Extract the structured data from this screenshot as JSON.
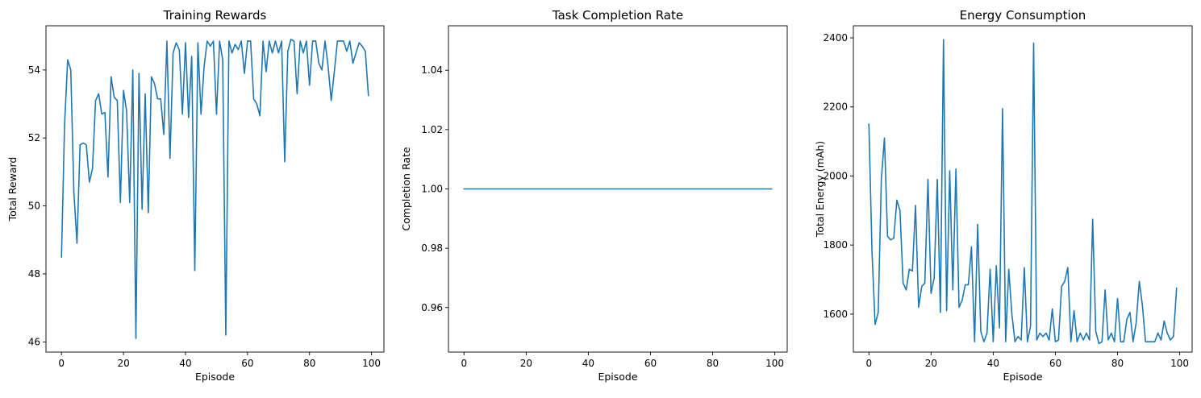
{
  "chart_data": [
    {
      "type": "line",
      "title": "Training Rewards",
      "xlabel": "Episode",
      "ylabel": "Total Reward",
      "xlim": [
        -5,
        104
      ],
      "ylim": [
        45.7,
        55.3
      ],
      "xticks": [
        0,
        20,
        40,
        60,
        80,
        100
      ],
      "yticks": [
        46,
        48,
        50,
        52,
        54
      ],
      "color": "#1f77b4",
      "grid": false,
      "series": [
        {
          "x": [
            0,
            1,
            2,
            3,
            4,
            5,
            6,
            7,
            8,
            9,
            10,
            11,
            12,
            13,
            14,
            15,
            16,
            17,
            18,
            19,
            20,
            21,
            22,
            23,
            24,
            25,
            26,
            27,
            28,
            29,
            30,
            31,
            32,
            33,
            34,
            35,
            36,
            37,
            38,
            39,
            40,
            41,
            42,
            43,
            44,
            45,
            46,
            47,
            48,
            49,
            50,
            51,
            52,
            53,
            54,
            55,
            56,
            57,
            58,
            59,
            60,
            61,
            62,
            63,
            64,
            65,
            66,
            67,
            68,
            69,
            70,
            71,
            72,
            73,
            74,
            75,
            76,
            77,
            78,
            79,
            80,
            81,
            82,
            83,
            84,
            85,
            86,
            87,
            88,
            89,
            90,
            91,
            92,
            93,
            94,
            95,
            96,
            97,
            98,
            99
          ],
          "values": [
            48.5,
            52.4,
            54.3,
            54.0,
            50.4,
            48.9,
            51.8,
            51.85,
            51.8,
            50.7,
            51.1,
            53.1,
            53.3,
            52.7,
            52.75,
            50.85,
            53.8,
            53.2,
            53.1,
            50.1,
            53.4,
            52.8,
            50.1,
            54.0,
            46.1,
            53.9,
            49.9,
            53.3,
            49.8,
            53.8,
            53.6,
            53.15,
            53.15,
            52.1,
            54.85,
            51.4,
            54.5,
            54.8,
            54.6,
            52.7,
            54.8,
            52.6,
            54.4,
            48.1,
            54.8,
            52.7,
            54.1,
            54.85,
            54.7,
            54.85,
            52.7,
            54.85,
            54.3,
            46.2,
            54.85,
            54.5,
            54.75,
            54.6,
            54.85,
            53.9,
            54.85,
            54.85,
            53.15,
            53.0,
            52.65,
            54.85,
            53.95,
            54.85,
            54.5,
            54.85,
            54.5,
            54.85,
            51.3,
            54.55,
            54.9,
            54.85,
            53.3,
            54.85,
            54.5,
            54.85,
            53.55,
            54.85,
            54.85,
            54.2,
            54.0,
            54.85,
            54.1,
            53.1,
            53.95,
            54.85,
            54.85,
            54.85,
            54.55,
            54.85,
            54.2,
            54.5,
            54.8,
            54.7,
            54.55,
            53.25
          ]
        }
      ]
    },
    {
      "type": "line",
      "title": "Task Completion Rate",
      "xlabel": "Episode",
      "ylabel": "Completion Rate",
      "xlim": [
        -5,
        104
      ],
      "ylim": [
        0.945,
        1.055
      ],
      "xticks": [
        0,
        20,
        40,
        60,
        80,
        100
      ],
      "yticks": [
        0.96,
        0.98,
        1.0,
        1.02,
        1.04
      ],
      "color": "#1f77b4",
      "grid": false,
      "series": [
        {
          "x": [
            0,
            99
          ],
          "values": [
            1.0,
            1.0
          ]
        }
      ]
    },
    {
      "type": "line",
      "title": "Energy Consumption",
      "xlabel": "Episode",
      "ylabel": "Total Energy (mAh)",
      "xlim": [
        -5,
        104
      ],
      "ylim": [
        1490,
        2435
      ],
      "xticks": [
        0,
        20,
        40,
        60,
        80,
        100
      ],
      "yticks": [
        1600,
        1800,
        2000,
        2200,
        2400
      ],
      "color": "#1f77b4",
      "grid": false,
      "series": [
        {
          "x": [
            0,
            1,
            2,
            3,
            4,
            5,
            6,
            7,
            8,
            9,
            10,
            11,
            12,
            13,
            14,
            15,
            16,
            17,
            18,
            19,
            20,
            21,
            22,
            23,
            24,
            25,
            26,
            27,
            28,
            29,
            30,
            31,
            32,
            33,
            34,
            35,
            36,
            37,
            38,
            39,
            40,
            41,
            42,
            43,
            44,
            45,
            46,
            47,
            48,
            49,
            50,
            51,
            52,
            53,
            54,
            55,
            56,
            57,
            58,
            59,
            60,
            61,
            62,
            63,
            64,
            65,
            66,
            67,
            68,
            69,
            70,
            71,
            72,
            73,
            74,
            75,
            76,
            77,
            78,
            79,
            80,
            81,
            82,
            83,
            84,
            85,
            86,
            87,
            88,
            89,
            90,
            91,
            92,
            93,
            94,
            95,
            96,
            97,
            98,
            99
          ],
          "values": [
            2150,
            1780,
            1570,
            1605,
            1990,
            2110,
            1825,
            1815,
            1820,
            1930,
            1900,
            1690,
            1670,
            1730,
            1725,
            1915,
            1620,
            1680,
            1690,
            1990,
            1660,
            1705,
            1990,
            1605,
            2395,
            1610,
            2015,
            1670,
            2020,
            1620,
            1640,
            1685,
            1685,
            1795,
            1520,
            1860,
            1550,
            1520,
            1545,
            1730,
            1520,
            1740,
            1560,
            2195,
            1520,
            1730,
            1600,
            1520,
            1535,
            1525,
            1735,
            1520,
            1565,
            2385,
            1525,
            1545,
            1535,
            1545,
            1525,
            1615,
            1520,
            1525,
            1680,
            1695,
            1735,
            1520,
            1610,
            1520,
            1545,
            1525,
            1545,
            1525,
            1875,
            1550,
            1515,
            1520,
            1670,
            1525,
            1545,
            1520,
            1645,
            1520,
            1520,
            1585,
            1605,
            1520,
            1575,
            1695,
            1625,
            1520,
            1520,
            1520,
            1520,
            1545,
            1525,
            1580,
            1545,
            1525,
            1535,
            1675
          ]
        }
      ]
    }
  ]
}
